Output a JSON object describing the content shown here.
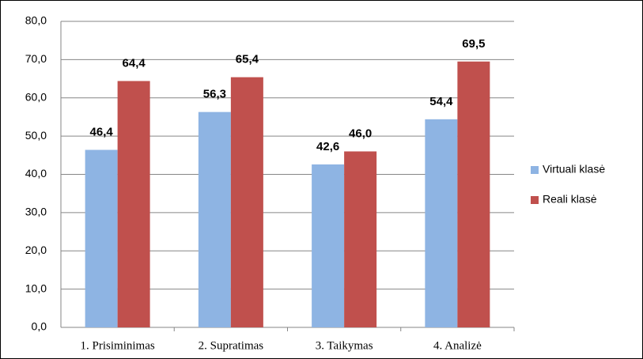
{
  "chart_data": {
    "type": "bar",
    "categories": [
      "1. Prisiminimas",
      "2. Supratimas",
      "3. Taikymas",
      "4. Analizė"
    ],
    "series": [
      {
        "name": "Virtuali klasė",
        "color": "#8eb4e3",
        "values": [
          46.4,
          56.3,
          42.6,
          54.4
        ],
        "value_labels": [
          "46,4",
          "56,3",
          "42,6",
          "54,4"
        ]
      },
      {
        "name": "Reali klasė",
        "color": "#c0504d",
        "values": [
          64.4,
          65.4,
          46.0,
          69.5
        ],
        "value_labels": [
          "64,4",
          "65,4",
          "46,0",
          "69,5"
        ]
      }
    ],
    "ylim": [
      0,
      80
    ],
    "yticks": [
      {
        "value": 0,
        "label": "0,0"
      },
      {
        "value": 10,
        "label": "10,0"
      },
      {
        "value": 20,
        "label": "20,0"
      },
      {
        "value": 30,
        "label": "30,0"
      },
      {
        "value": 40,
        "label": "40,0"
      },
      {
        "value": 50,
        "label": "50,0"
      },
      {
        "value": 60,
        "label": "60,0"
      },
      {
        "value": 70,
        "label": "70,0"
      },
      {
        "value": 80,
        "label": "80,0"
      }
    ],
    "grid": true,
    "legend": "right"
  }
}
